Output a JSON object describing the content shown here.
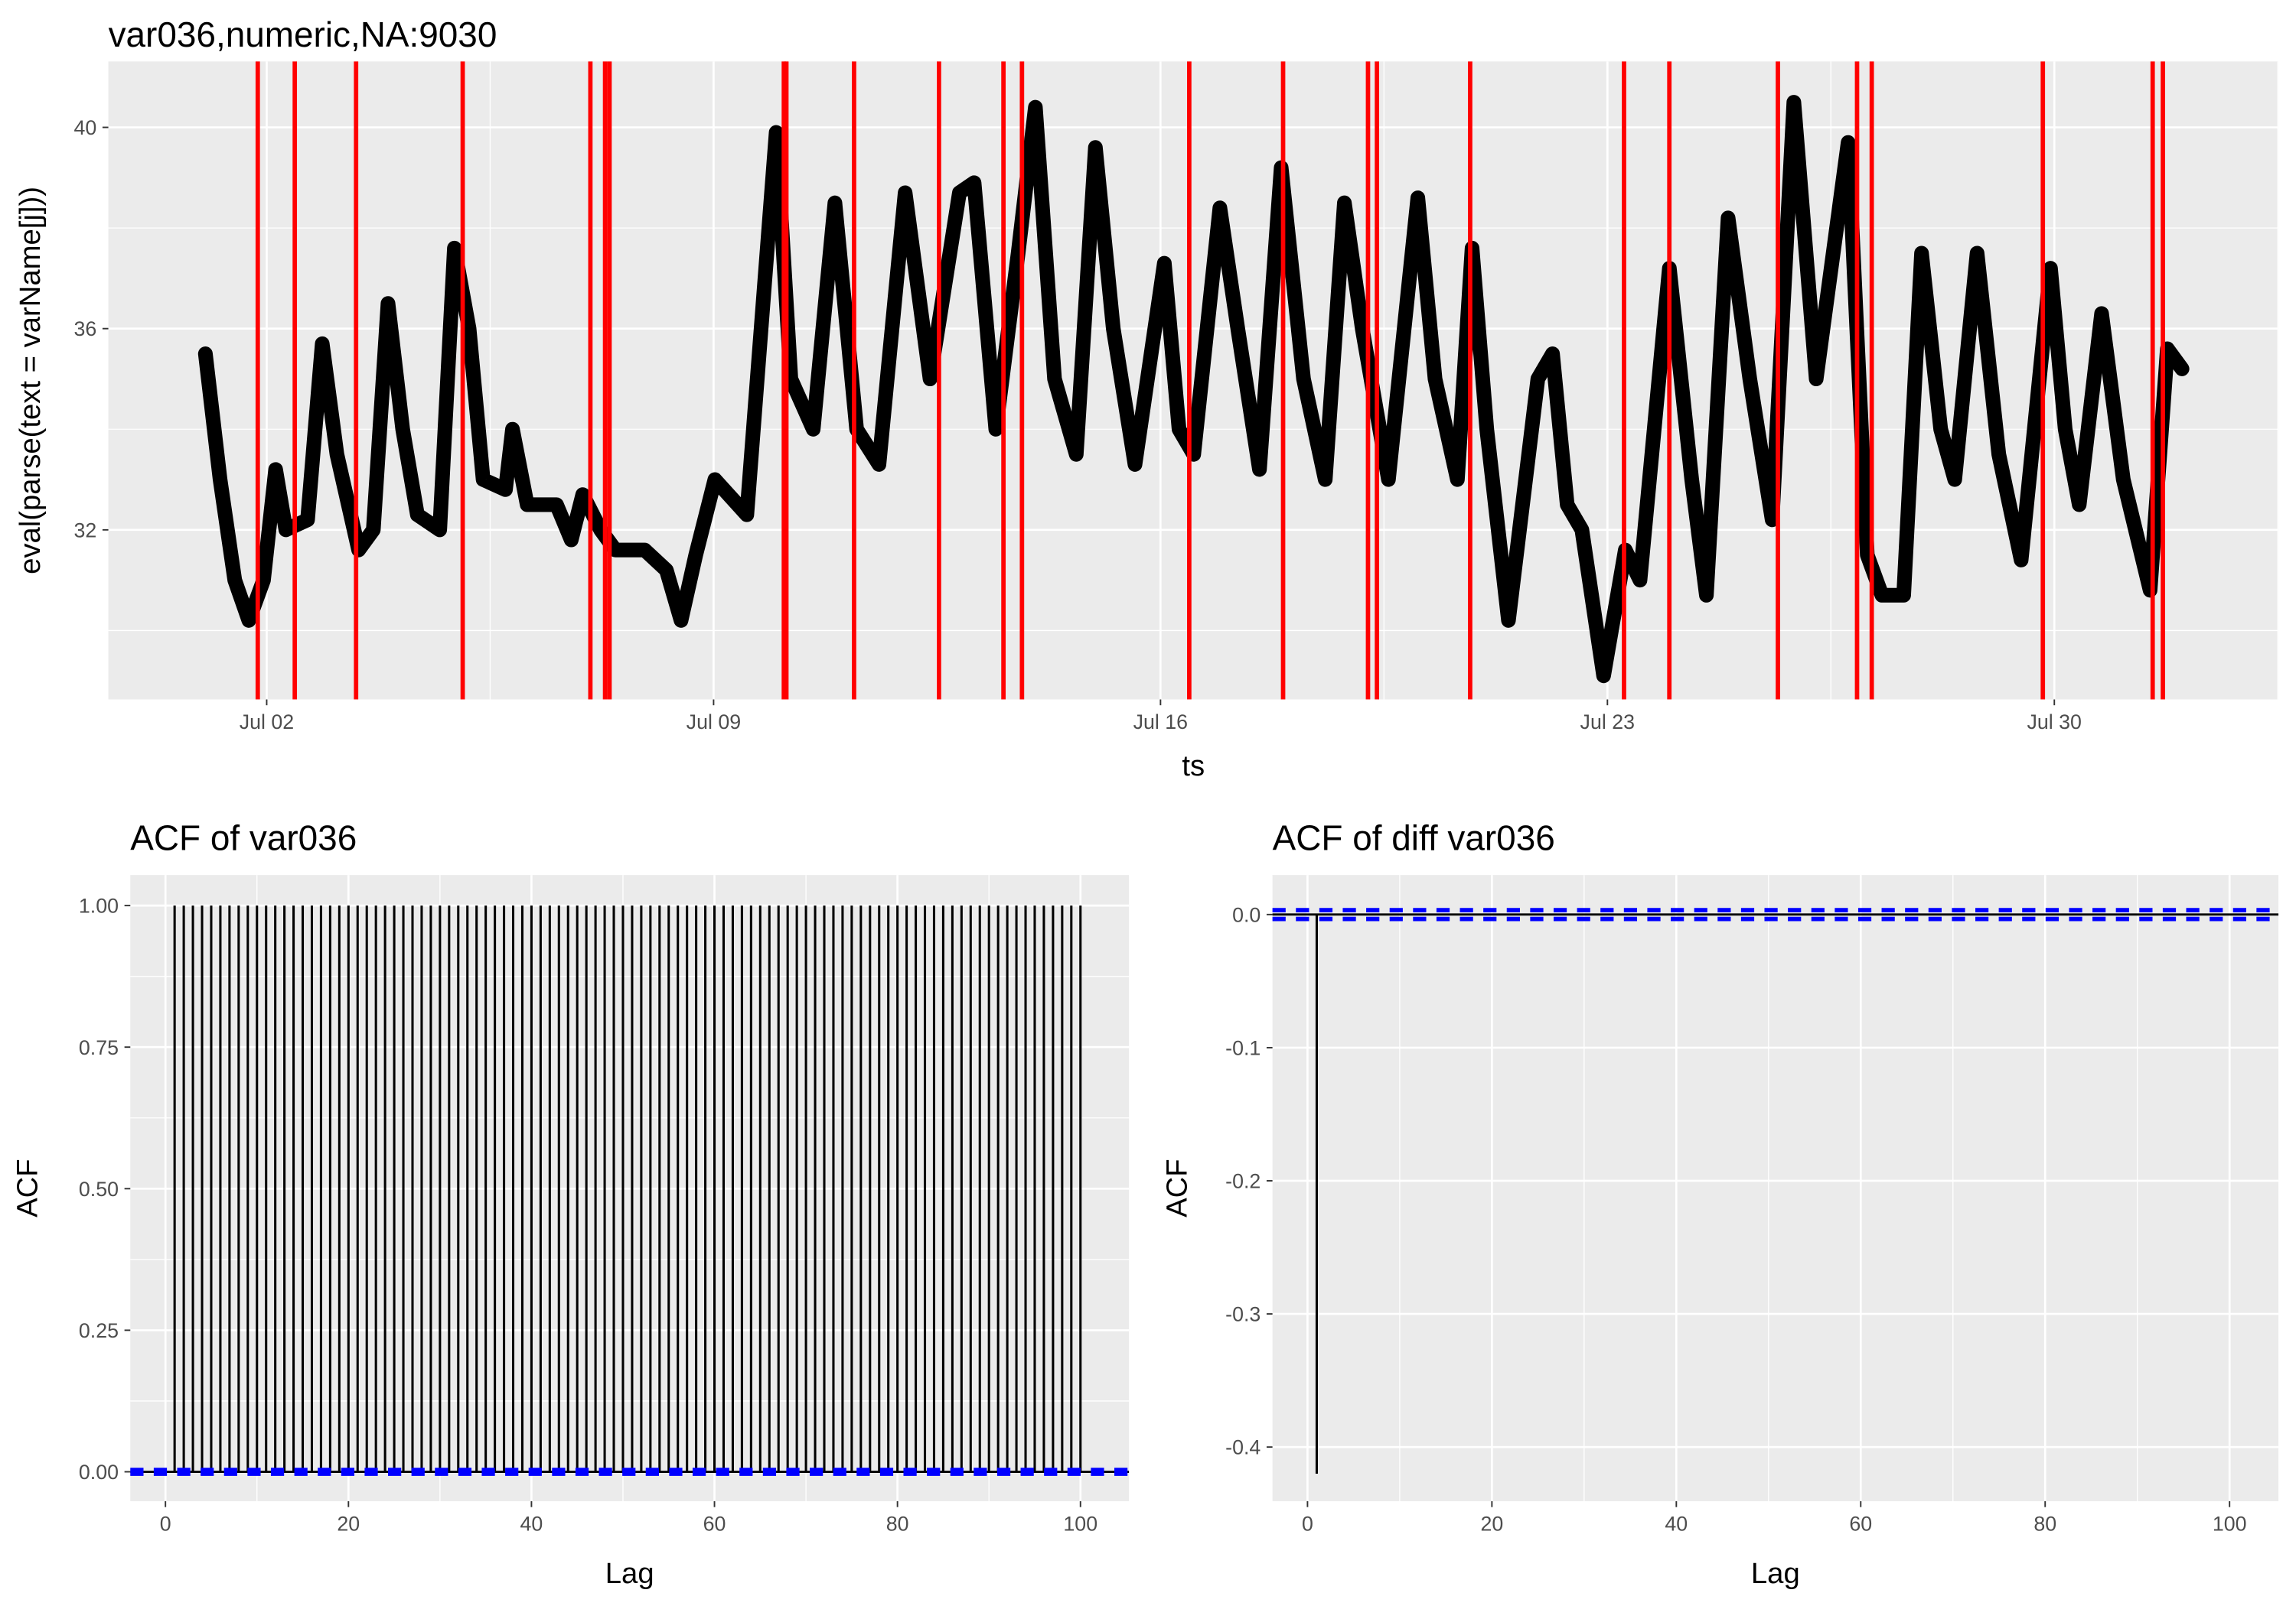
{
  "chart_data": [
    {
      "type": "line",
      "title": "var036,numeric,NA:9030",
      "x_label": "ts",
      "y_label": "eval(parse(text = varName[j]))",
      "color": "#000000",
      "grid": true,
      "x": [
        1.04,
        1.27,
        1.5,
        1.72,
        1.95,
        2.14,
        2.3,
        2.64,
        2.87,
        3.1,
        3.44,
        3.67,
        3.9,
        4.13,
        4.36,
        4.71,
        4.94,
        5.17,
        5.39,
        5.74,
        5.85,
        6.08,
        6.54,
        6.77,
        6.95,
        7.23,
        7.46,
        7.92,
        8.26,
        8.49,
        8.72,
        9.02,
        9.52,
        9.98,
        10.21,
        10.56,
        10.9,
        11.24,
        11.59,
        12.0,
        12.39,
        12.85,
        13.08,
        13.42,
        13.77,
        14.04,
        14.34,
        14.68,
        14.98,
        15.26,
        15.6,
        16.06,
        16.29,
        16.52,
        16.93,
        17.21,
        17.55,
        17.89,
        18.24,
        18.58,
        18.88,
        19.16,
        19.57,
        20.03,
        20.3,
        20.65,
        20.88,
        21.11,
        21.45,
        21.91,
        22.14,
        22.37,
        22.6,
        22.94,
        23.28,
        23.51,
        23.97,
        24.32,
        24.55,
        24.89,
        25.23,
        25.58,
        25.92,
        26.27,
        26.77,
        27.07,
        27.3,
        27.64,
        27.92,
        28.22,
        28.44,
        28.79,
        29.13,
        29.48,
        29.94,
        30.17,
        30.39,
        30.74,
        31.08,
        31.5,
        31.77,
        32.0
      ],
      "values": [
        35.5,
        33,
        31,
        30.2,
        31,
        33.2,
        32,
        32.2,
        35.7,
        33.5,
        31.6,
        32,
        36.5,
        34,
        32.3,
        32,
        37.6,
        36,
        33,
        32.8,
        34,
        32.5,
        32.5,
        31.8,
        32.7,
        32,
        31.6,
        31.6,
        31.2,
        30.2,
        31.5,
        33,
        32.3,
        39.9,
        35,
        34,
        38.5,
        34,
        33.3,
        38.7,
        35,
        38.7,
        38.9,
        34,
        37.5,
        40.4,
        35,
        33.5,
        39.6,
        36,
        33.3,
        37.3,
        34,
        33.5,
        38.4,
        36,
        33.2,
        39.2,
        35,
        33,
        38.5,
        36,
        33,
        38.6,
        35,
        33,
        37.6,
        34,
        30.2,
        35,
        35.5,
        32.5,
        32,
        29.1,
        31.6,
        31,
        37.2,
        33,
        30.7,
        38.2,
        35,
        32.2,
        40.5,
        35,
        39.7,
        31.5,
        30.7,
        30.7,
        37.5,
        34,
        33,
        37.5,
        33.5,
        31.4,
        37.2,
        34,
        32.5,
        36.3,
        33,
        30.8,
        35.6,
        35.2
      ],
      "vlines": {
        "color": "#ff0000",
        "x": [
          1.86,
          2.44,
          3.4,
          5.07,
          7.07,
          7.3,
          7.37,
          10.1,
          10.14,
          11.2,
          12.53,
          13.54,
          13.83,
          16.45,
          17.92,
          19.25,
          19.39,
          20.85,
          23.26,
          23.97,
          25.67,
          26.91,
          27.14,
          29.82,
          31.54,
          31.7
        ]
      },
      "xlim": [
        -0.48,
        33.51
      ],
      "xticks": [
        {
          "value": 2,
          "label": "Jul 02"
        },
        {
          "value": 9,
          "label": "Jul 09"
        },
        {
          "value": 16,
          "label": "Jul 16"
        },
        {
          "value": 23,
          "label": "Jul 23"
        },
        {
          "value": 30,
          "label": "Jul 30"
        }
      ],
      "ylim": [
        28.63,
        41.31
      ],
      "yticks": [
        32,
        36,
        40
      ]
    },
    {
      "type": "acf",
      "title": "ACF of var036",
      "x_label": "Lag",
      "y_label": "ACF",
      "color": "#000000",
      "grid": true,
      "ci_lines": {
        "color": "#0000ff",
        "values": [
          0.0033,
          -0.0033
        ]
      },
      "x": [
        1,
        2,
        3,
        4,
        5,
        6,
        7,
        8,
        9,
        10,
        11,
        12,
        13,
        14,
        15,
        16,
        17,
        18,
        19,
        20,
        21,
        22,
        23,
        24,
        25,
        26,
        27,
        28,
        29,
        30,
        31,
        32,
        33,
        34,
        35,
        36,
        37,
        38,
        39,
        40,
        41,
        42,
        43,
        44,
        45,
        46,
        47,
        48,
        49,
        50,
        51,
        52,
        53,
        54,
        55,
        56,
        57,
        58,
        59,
        60,
        61,
        62,
        63,
        64,
        65,
        66,
        67,
        68,
        69,
        70,
        71,
        72,
        73,
        74,
        75,
        76,
        77,
        78,
        79,
        80,
        81,
        82,
        83,
        84,
        85,
        86,
        87,
        88,
        89,
        90,
        91,
        92,
        93,
        94,
        95,
        96,
        97,
        98,
        99,
        100
      ],
      "values": [
        1,
        1,
        1,
        1,
        1,
        1,
        1,
        1,
        1,
        1,
        1,
        1,
        1,
        1,
        1,
        1,
        1,
        1,
        1,
        1,
        1,
        1,
        1,
        1,
        1,
        1,
        1,
        1,
        1,
        1,
        1,
        1,
        1,
        1,
        1,
        1,
        1,
        1,
        1,
        1,
        1,
        1,
        1,
        1,
        1,
        1,
        1,
        1,
        1,
        1,
        1,
        1,
        1,
        1,
        1,
        1,
        1,
        1,
        1,
        1,
        1,
        1,
        1,
        1,
        1,
        1,
        1,
        1,
        1,
        1,
        1,
        1,
        1,
        1,
        1,
        1,
        1,
        1,
        1,
        1,
        1,
        1,
        1,
        1,
        1,
        1,
        1,
        1,
        1,
        1,
        1,
        1,
        1,
        1,
        1,
        1,
        1,
        1,
        1,
        1
      ],
      "xlim": [
        -3.84,
        105.3
      ],
      "xticks": [
        0,
        20,
        40,
        60,
        80,
        100
      ],
      "ylim": [
        -0.052,
        1.054
      ],
      "yticks": [
        {
          "value": 0,
          "label": "0.00"
        },
        {
          "value": 0.25,
          "label": "0.25"
        },
        {
          "value": 0.5,
          "label": "0.50"
        },
        {
          "value": 0.75,
          "label": "0.75"
        },
        {
          "value": 1,
          "label": "1.00"
        }
      ]
    },
    {
      "type": "acf",
      "title": "ACF of diff var036",
      "x_label": "Lag",
      "y_label": "ACF",
      "color": "#000000",
      "grid": true,
      "ci_lines": {
        "color": "#0000ff",
        "values": [
          0.0033,
          -0.0033
        ]
      },
      "x": [
        1,
        2,
        3,
        4,
        5,
        6,
        7,
        8,
        9,
        10,
        11,
        12,
        13,
        14,
        15,
        16,
        17,
        18,
        19,
        20,
        21,
        22,
        23,
        24,
        25,
        26,
        27,
        28,
        29,
        30,
        31,
        32,
        33,
        34,
        35,
        36,
        37,
        38,
        39,
        40,
        41,
        42,
        43,
        44,
        45,
        46,
        47,
        48,
        49,
        50,
        51,
        52,
        53,
        54,
        55,
        56,
        57,
        58,
        59,
        60,
        61,
        62,
        63,
        64,
        65,
        66,
        67,
        68,
        69,
        70,
        71,
        72,
        73,
        74,
        75,
        76,
        77,
        78,
        79,
        80,
        81,
        82,
        83,
        84,
        85,
        86,
        87,
        88,
        89,
        90,
        91,
        92,
        93,
        94,
        95,
        96,
        97,
        98,
        99,
        100
      ],
      "values": [
        -0.42,
        0,
        0,
        0,
        0,
        0,
        0,
        0,
        0,
        0,
        0,
        0,
        0,
        0,
        0,
        0,
        0,
        0,
        0,
        0,
        0,
        0,
        0,
        0,
        0,
        0,
        0,
        0,
        0,
        0,
        0,
        0,
        0,
        0,
        0,
        0,
        0,
        0,
        0,
        0,
        0,
        0,
        0,
        0,
        0,
        0,
        0,
        0,
        0,
        0,
        0,
        0,
        0,
        0,
        0,
        0,
        0,
        0,
        0,
        0,
        0,
        0,
        0,
        0,
        0,
        0,
        0,
        0,
        0,
        0,
        0,
        0,
        0,
        0,
        0,
        0,
        0,
        0,
        0,
        0,
        0,
        0,
        0,
        0,
        0,
        0,
        0,
        0,
        0,
        0,
        0,
        0,
        0,
        0,
        0,
        0,
        0,
        0,
        0,
        0
      ],
      "xlim": [
        -3.8,
        105.3
      ],
      "xticks": [
        0,
        20,
        40,
        60,
        80,
        100
      ],
      "ylim": [
        -0.4407,
        0.0297
      ],
      "yticks": [
        {
          "value": 0,
          "label": "0.0"
        },
        -0.1,
        -0.2,
        -0.3,
        -0.4
      ]
    }
  ]
}
